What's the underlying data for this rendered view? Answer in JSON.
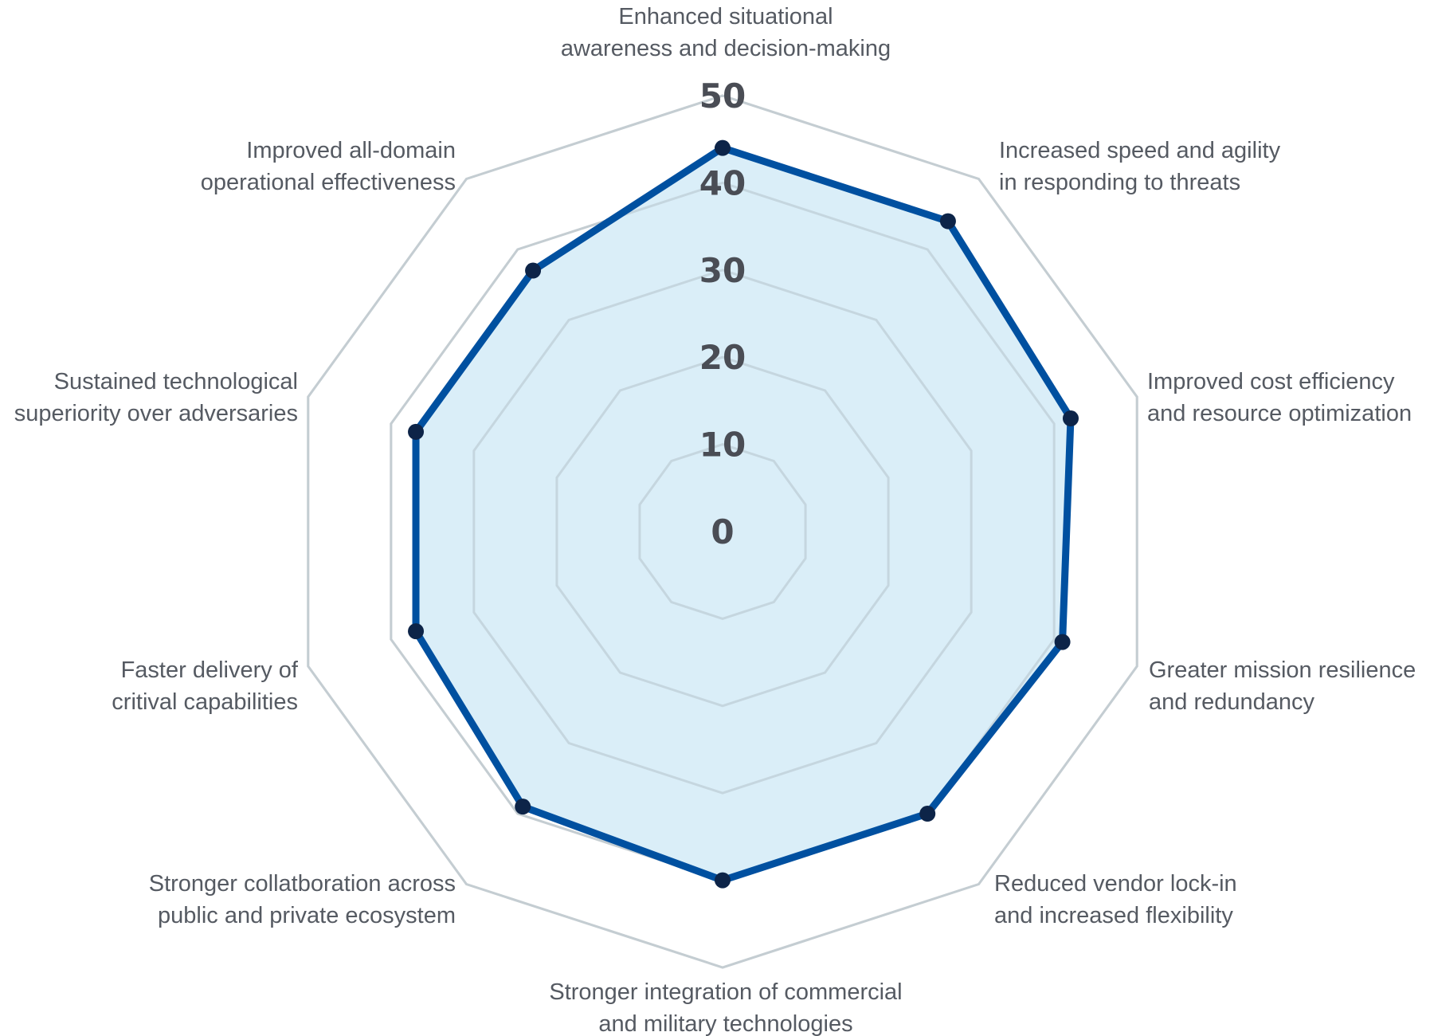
{
  "chart_data": {
    "type": "radar",
    "title": "",
    "categories": [
      [
        "Enhanced situational",
        "awareness and decision-making"
      ],
      [
        "Increased speed and agility",
        "in responding to threats"
      ],
      [
        "Improved cost efficiency",
        "and resource optimization"
      ],
      [
        "Greater mission resilience",
        "and redundancy"
      ],
      [
        "Reduced vendor lock-in",
        "and increased flexibility"
      ],
      [
        "Stronger integration of commercial",
        "and military technologies"
      ],
      [
        "Stronger collatboration across",
        "public and private ecosystem"
      ],
      [
        "Faster delivery of",
        "critival capabilities"
      ],
      [
        "Sustained technological",
        "superiority over adversaries"
      ],
      [
        "Improved all-domain",
        "operational effectiveness"
      ]
    ],
    "values": [
      44,
      44,
      42,
      41,
      40,
      40,
      39,
      37,
      37,
      37
    ],
    "rlim": [
      0,
      50
    ],
    "ticks": [
      "0",
      "10",
      "20",
      "30",
      "40",
      "50"
    ],
    "grid": true,
    "legend": "none",
    "colors": {
      "line": "#0050a0",
      "fill": "#d8edf8",
      "marker": "#0d2448",
      "grid": "#d5d5d5"
    }
  }
}
